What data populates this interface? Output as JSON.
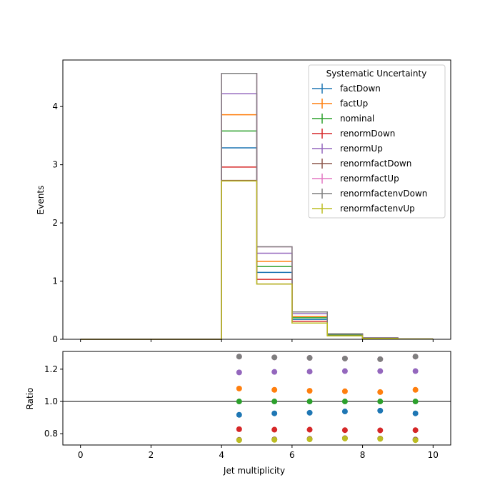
{
  "chart_data": [
    {
      "type": "histogram-step",
      "panel": "main",
      "xlabel": "",
      "ylabel": "Events",
      "xlim": [
        -0.5,
        10.5
      ],
      "ylim": [
        0,
        4.8
      ],
      "xticks": [
        0,
        2,
        4,
        6,
        8,
        10
      ],
      "yticks": [
        0,
        1,
        2,
        3,
        4
      ],
      "legend_title": "Systematic Uncertainty",
      "legend_position": "top-right",
      "bin_edges": [
        0,
        1,
        2,
        3,
        4,
        5,
        6,
        7,
        8,
        9,
        10
      ],
      "series": [
        {
          "name": "factDown",
          "color": "#1f77b4",
          "values": [
            0,
            0,
            0,
            0,
            3.29,
            1.15,
            0.34,
            0.07,
            0.02,
            0.005
          ]
        },
        {
          "name": "factUp",
          "color": "#ff7f0e",
          "values": [
            0,
            0,
            0,
            0,
            3.86,
            1.34,
            0.39,
            0.08,
            0.02,
            0.006
          ]
        },
        {
          "name": "nominal",
          "color": "#2ca02c",
          "values": [
            0,
            0,
            0,
            0,
            3.58,
            1.25,
            0.37,
            0.075,
            0.02,
            0.005
          ]
        },
        {
          "name": "renormDown",
          "color": "#d62728",
          "values": [
            0,
            0,
            0,
            0,
            2.96,
            1.03,
            0.31,
            0.06,
            0.016,
            0.004
          ]
        },
        {
          "name": "renormUp",
          "color": "#9467bd",
          "values": [
            0,
            0,
            0,
            0,
            4.22,
            1.48,
            0.44,
            0.09,
            0.024,
            0.006
          ]
        },
        {
          "name": "renormfactDown",
          "color": "#8c564b",
          "values": [
            0,
            0,
            0,
            0,
            2.73,
            0.95,
            0.28,
            0.058,
            0.015,
            0.004
          ]
        },
        {
          "name": "renormfactUp",
          "color": "#e377c2",
          "values": [
            0,
            0,
            0,
            0,
            4.57,
            1.59,
            0.47,
            0.095,
            0.025,
            0.007
          ]
        },
        {
          "name": "renormfactenvDown",
          "color": "#7f7f7f",
          "values": [
            0,
            0,
            0,
            0,
            4.57,
            1.59,
            0.47,
            0.095,
            0.025,
            0.007
          ]
        },
        {
          "name": "renormfactenvUp",
          "color": "#bcbd22",
          "values": [
            0,
            0,
            0,
            0,
            2.72,
            0.95,
            0.28,
            0.058,
            0.015,
            0.004
          ]
        }
      ]
    },
    {
      "type": "scatter",
      "panel": "ratio",
      "xlabel": "Jet multiplicity",
      "ylabel": "Ratio",
      "xlim": [
        -0.5,
        10.5
      ],
      "ylim": [
        0.73,
        1.31
      ],
      "xticks": [
        0,
        2,
        4,
        6,
        8,
        10
      ],
      "yticks": [
        0.8,
        1.0,
        1.2
      ],
      "yticklabels": [
        "0.8",
        "1.0",
        "1.2"
      ],
      "reference_line": 1.0,
      "x": [
        4.5,
        5.5,
        6.5,
        7.5,
        8.5,
        9.5
      ],
      "series": [
        {
          "name": "factDown",
          "color": "#1f77b4",
          "values": [
            0.917,
            0.926,
            0.93,
            0.938,
            0.943,
            0.926
          ]
        },
        {
          "name": "factUp",
          "color": "#ff7f0e",
          "values": [
            1.08,
            1.072,
            1.066,
            1.063,
            1.058,
            1.072
          ]
        },
        {
          "name": "nominal",
          "color": "#2ca02c",
          "values": [
            1.0,
            1.0,
            1.0,
            1.0,
            1.0,
            1.0
          ]
        },
        {
          "name": "renormDown",
          "color": "#d62728",
          "values": [
            0.828,
            0.825,
            0.825,
            0.822,
            0.821,
            0.822
          ]
        },
        {
          "name": "renormUp",
          "color": "#9467bd",
          "values": [
            1.18,
            1.183,
            1.185,
            1.188,
            1.188,
            1.188
          ]
        },
        {
          "name": "renormfactDown",
          "color": "#8c564b",
          "values": [
            0.762,
            0.765,
            0.768,
            0.772,
            0.77,
            0.764
          ]
        },
        {
          "name": "renormfactUp",
          "color": "#e377c2",
          "values": [
            1.278,
            1.273,
            1.27,
            1.266,
            1.262,
            1.278
          ]
        },
        {
          "name": "renormfactenvDown",
          "color": "#7f7f7f",
          "values": [
            1.278,
            1.273,
            1.27,
            1.266,
            1.262,
            1.278
          ]
        },
        {
          "name": "renormfactenvUp",
          "color": "#bcbd22",
          "values": [
            0.76,
            0.762,
            0.765,
            0.77,
            0.768,
            0.76
          ]
        }
      ]
    }
  ]
}
